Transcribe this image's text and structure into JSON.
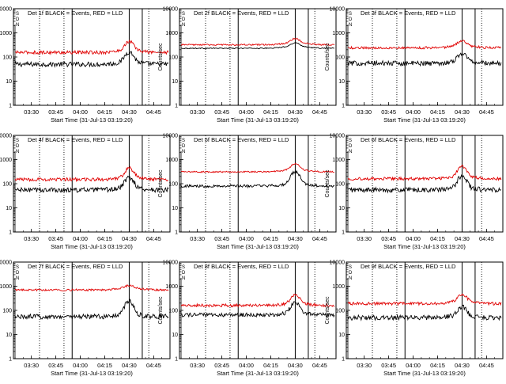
{
  "page": {
    "background": "#ffffff"
  },
  "colors": {
    "events": "#000000",
    "lld": "#e00000",
    "axis": "#000000"
  },
  "panel_common": {
    "ylabel": "Counts/sec",
    "xlabel": "Start Time (31-Jul-13 03:19:20)",
    "xticks": [
      "03:30",
      "03:45",
      "04:00",
      "04:15",
      "04:30",
      "04:45"
    ],
    "yticks": [
      "1",
      "10",
      "100",
      "1000",
      "10000"
    ],
    "corner_marks": [
      "S",
      "D",
      "N"
    ]
  },
  "chart_data": [
    {
      "type": "line",
      "title": "Det 1f BLACK = Events, RED = LLD",
      "x_label": "Start Time (31-Jul-13 03:19:20)",
      "y_label": "Counts/sec",
      "xlim": [
        "03:19",
        "04:55"
      ],
      "ylim": [
        1,
        10000
      ],
      "y_scale": "log",
      "dotted_lines": [
        "03:35",
        "03:50",
        "04:42"
      ],
      "solid_lines": [
        "03:55",
        "04:30",
        "04:38"
      ],
      "series": [
        {
          "name": "Events",
          "color": "#000000",
          "level": 50,
          "peak": 150,
          "noise": 0.1
        },
        {
          "name": "LLD",
          "color": "#e00000",
          "level": 155,
          "peak": 400,
          "noise": 0.07
        }
      ]
    },
    {
      "type": "line",
      "title": "Det 2f BLACK = Events, RED = LLD",
      "x_label": "Start Time (31-Jul-13 03:19:20)",
      "y_label": "Counts/sec",
      "xlim": [
        "03:19",
        "04:55"
      ],
      "ylim": [
        1,
        10000
      ],
      "y_scale": "log",
      "dotted_lines": [
        "03:35",
        "03:50",
        "04:42"
      ],
      "solid_lines": [
        "03:55",
        "04:30",
        "04:38"
      ],
      "series": [
        {
          "name": "Events",
          "color": "#000000",
          "level": 230,
          "peak": 330,
          "noise": 0.02
        },
        {
          "name": "LLD",
          "color": "#e00000",
          "level": 320,
          "peak": 500,
          "noise": 0.03
        }
      ]
    },
    {
      "type": "line",
      "title": "Det 3f BLACK = Events, RED = LLD",
      "x_label": "Start Time (31-Jul-13 03:19:20)",
      "y_label": "Counts/sec",
      "xlim": [
        "03:19",
        "04:55"
      ],
      "ylim": [
        1,
        10000
      ],
      "y_scale": "log",
      "dotted_lines": [
        "03:35",
        "03:50",
        "04:42"
      ],
      "solid_lines": [
        "03:55",
        "04:30",
        "04:38"
      ],
      "series": [
        {
          "name": "Events",
          "color": "#000000",
          "level": 55,
          "peak": 130,
          "noise": 0.1
        },
        {
          "name": "LLD",
          "color": "#e00000",
          "level": 240,
          "peak": 420,
          "noise": 0.05
        }
      ]
    },
    {
      "type": "line",
      "title": "Det 4f BLACK = Events, RED = LLD",
      "x_label": "Start Time (31-Jul-13 03:19:20)",
      "y_label": "Counts/sec",
      "xlim": [
        "03:19",
        "04:55"
      ],
      "ylim": [
        1,
        10000
      ],
      "y_scale": "log",
      "dotted_lines": [
        "03:35",
        "03:50",
        "04:42"
      ],
      "solid_lines": [
        "03:55",
        "04:30",
        "04:38"
      ],
      "series": [
        {
          "name": "Events",
          "color": "#000000",
          "level": 55,
          "peak": 170,
          "noise": 0.1
        },
        {
          "name": "LLD",
          "color": "#e00000",
          "level": 150,
          "peak": 400,
          "noise": 0.07
        }
      ]
    },
    {
      "type": "line",
      "title": "Det 5f BLACK = Events, RED = LLD",
      "x_label": "Start Time (31-Jul-13 03:19:20)",
      "y_label": "Counts/sec",
      "xlim": [
        "03:19",
        "04:55"
      ],
      "ylim": [
        1,
        10000
      ],
      "y_scale": "log",
      "dotted_lines": [
        "03:35",
        "03:50",
        "04:42"
      ],
      "solid_lines": [
        "03:55",
        "04:30",
        "04:38"
      ],
      "series": [
        {
          "name": "Events",
          "color": "#000000",
          "level": 80,
          "peak": 300,
          "noise": 0.06
        },
        {
          "name": "LLD",
          "color": "#e00000",
          "level": 310,
          "peak": 600,
          "noise": 0.03
        }
      ]
    },
    {
      "type": "line",
      "title": "Det 6f BLACK = Events, RED = LLD",
      "x_label": "Start Time (31-Jul-13 03:19:20)",
      "y_label": "Counts/sec",
      "xlim": [
        "03:19",
        "04:55"
      ],
      "ylim": [
        1,
        10000
      ],
      "y_scale": "log",
      "dotted_lines": [
        "03:35",
        "03:50",
        "04:42"
      ],
      "solid_lines": [
        "03:55",
        "04:30",
        "04:38"
      ],
      "series": [
        {
          "name": "Events",
          "color": "#000000",
          "level": 55,
          "peak": 200,
          "noise": 0.1
        },
        {
          "name": "LLD",
          "color": "#e00000",
          "level": 160,
          "peak": 480,
          "noise": 0.06
        }
      ]
    },
    {
      "type": "line",
      "title": "Det 7f BLACK = Events, RED = LLD",
      "x_label": "Start Time (31-Jul-13 03:19:20)",
      "y_label": "Counts/sec",
      "xlim": [
        "03:19",
        "04:55"
      ],
      "ylim": [
        1,
        10000
      ],
      "y_scale": "log",
      "dotted_lines": [
        "03:35",
        "03:50",
        "04:42"
      ],
      "solid_lines": [
        "03:55",
        "04:30",
        "04:38"
      ],
      "series": [
        {
          "name": "Events",
          "color": "#000000",
          "level": 55,
          "peak": 230,
          "noise": 0.1
        },
        {
          "name": "LLD",
          "color": "#e00000",
          "level": 700,
          "peak": 900,
          "noise": 0.04
        }
      ]
    },
    {
      "type": "line",
      "title": "Det 8f BLACK = Events, RED = LLD",
      "x_label": "Start Time (31-Jul-13 03:19:20)",
      "y_label": "Counts/sec",
      "xlim": [
        "03:19",
        "04:55"
      ],
      "ylim": [
        1,
        10000
      ],
      "y_scale": "log",
      "dotted_lines": [
        "03:35",
        "03:50",
        "04:42"
      ],
      "solid_lines": [
        "03:55",
        "04:30",
        "04:38"
      ],
      "series": [
        {
          "name": "Events",
          "color": "#000000",
          "level": 65,
          "peak": 200,
          "noise": 0.08
        },
        {
          "name": "LLD",
          "color": "#e00000",
          "level": 160,
          "peak": 400,
          "noise": 0.06
        }
      ]
    },
    {
      "type": "line",
      "title": "Det 9f BLACK = Events, RED = LLD",
      "x_label": "Start Time (31-Jul-13 03:19:20)",
      "y_label": "Counts/sec",
      "xlim": [
        "03:19",
        "04:55"
      ],
      "ylim": [
        1,
        10000
      ],
      "y_scale": "log",
      "dotted_lines": [
        "03:35",
        "03:50",
        "04:42"
      ],
      "solid_lines": [
        "03:55",
        "04:30",
        "04:38"
      ],
      "series": [
        {
          "name": "Events",
          "color": "#000000",
          "level": 50,
          "peak": 130,
          "noise": 0.1
        },
        {
          "name": "LLD",
          "color": "#e00000",
          "level": 190,
          "peak": 420,
          "noise": 0.06
        }
      ]
    }
  ]
}
